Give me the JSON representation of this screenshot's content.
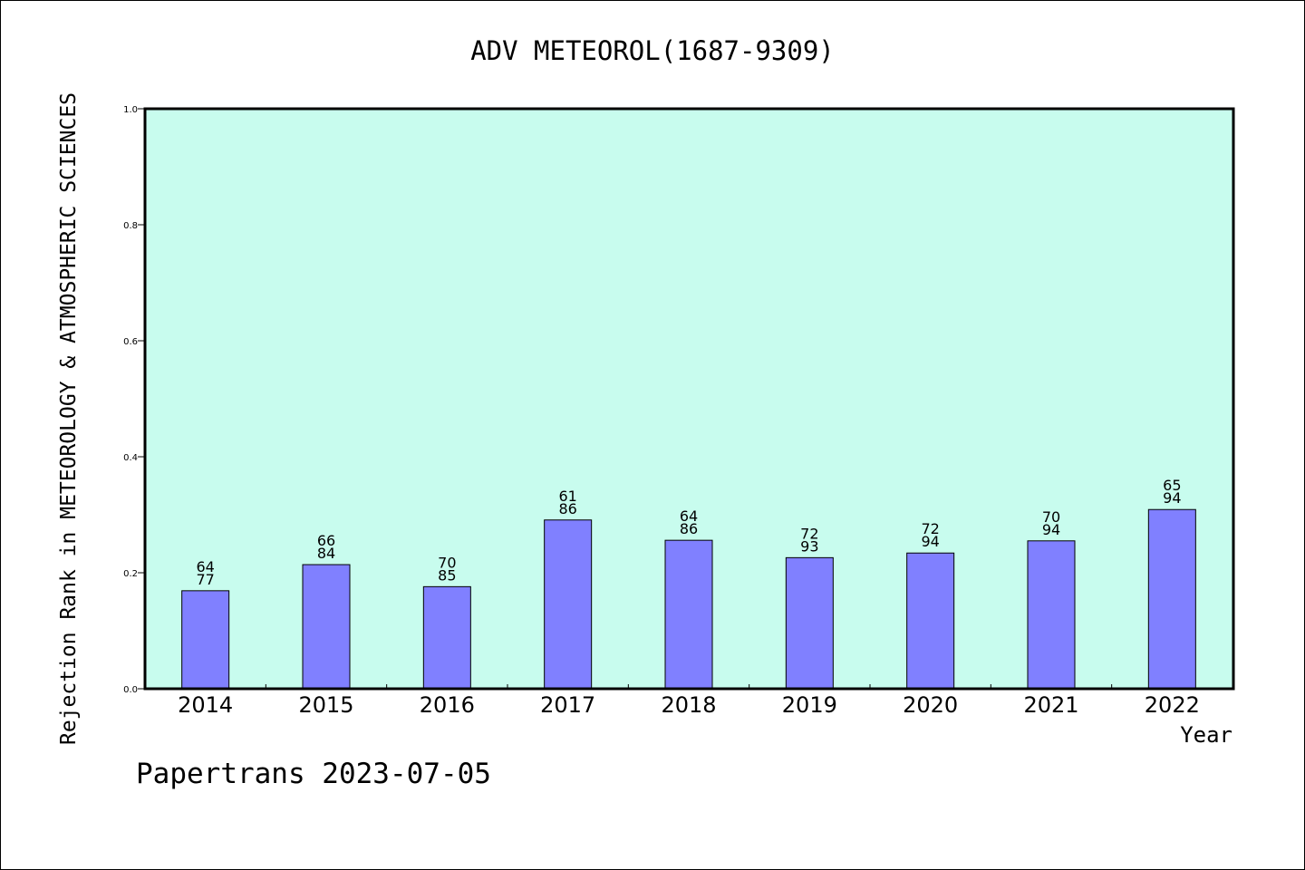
{
  "chart_data": {
    "type": "bar",
    "title": "ADV METEOROL(1687-9309)",
    "xlabel": "Year",
    "ylabel": "Rejection Rank in METEOROLOGY & ATMOSPHERIC SCIENCES",
    "categories": [
      "2014",
      "2015",
      "2016",
      "2017",
      "2018",
      "2019",
      "2020",
      "2021",
      "2022"
    ],
    "values": [
      0.169,
      0.214,
      0.176,
      0.291,
      0.256,
      0.226,
      0.234,
      0.255,
      0.309
    ],
    "label_top": [
      "64",
      "66",
      "70",
      "61",
      "64",
      "72",
      "72",
      "70",
      "65"
    ],
    "label_bottom": [
      "77",
      "84",
      "85",
      "86",
      "86",
      "93",
      "94",
      "94",
      "94"
    ],
    "ylim": [
      0,
      1.0
    ],
    "yticks": [
      "0.0",
      "0.2",
      "0.4",
      "0.6",
      "0.8",
      "1.0"
    ],
    "grid": false,
    "colors": {
      "plot_bg": "#c8fcee",
      "bar": "#8080ff",
      "bar_edge": "#000000"
    }
  },
  "footer": {
    "text": "Papertrans 2023-07-05"
  }
}
